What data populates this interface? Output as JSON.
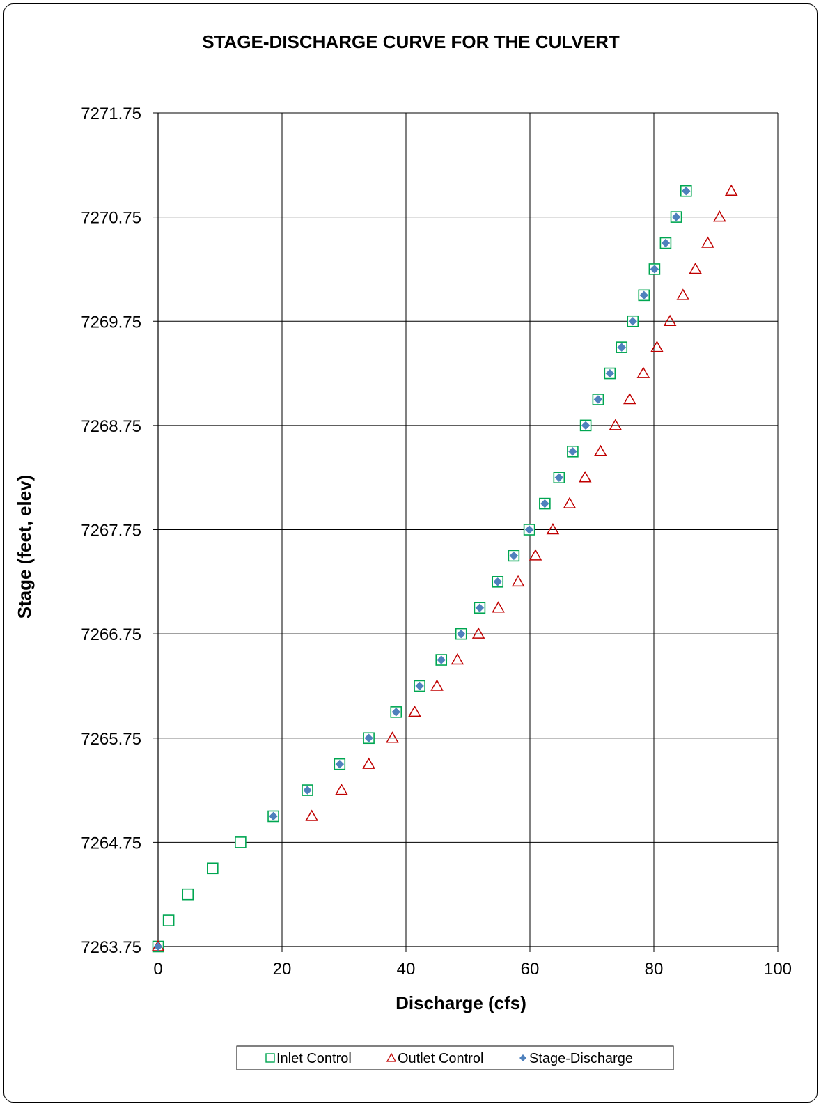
{
  "chart_data": {
    "type": "scatter",
    "title": "STAGE-DISCHARGE CURVE FOR THE CULVERT",
    "xlabel": "Discharge (cfs)",
    "ylabel": "Stage (feet, elev)",
    "xlim": [
      0,
      100
    ],
    "ylim": [
      7263.75,
      7271.75
    ],
    "x_ticks": [
      "0",
      "20",
      "40",
      "60",
      "80",
      "100"
    ],
    "y_ticks": [
      "7263.75",
      "7264.75",
      "7265.75",
      "7266.75",
      "7267.75",
      "7268.75",
      "7269.75",
      "7270.75",
      "7271.75"
    ],
    "grid": true,
    "legend_position": "bottom",
    "series": [
      {
        "name": "Inlet Control",
        "marker": "open-square",
        "color": "#00A651",
        "points": [
          [
            0,
            7263.75
          ],
          [
            1.7,
            7264.0
          ],
          [
            4.8,
            7264.25
          ],
          [
            8.8,
            7264.5
          ],
          [
            13.3,
            7264.75
          ],
          [
            18.6,
            7265.0
          ],
          [
            24.1,
            7265.25
          ],
          [
            29.3,
            7265.5
          ],
          [
            34.0,
            7265.75
          ],
          [
            38.4,
            7266.0
          ],
          [
            42.2,
            7266.25
          ],
          [
            45.7,
            7266.5
          ],
          [
            48.9,
            7266.75
          ],
          [
            51.9,
            7267.0
          ],
          [
            54.8,
            7267.25
          ],
          [
            57.4,
            7267.5
          ],
          [
            59.9,
            7267.75
          ],
          [
            62.4,
            7268.0
          ],
          [
            64.7,
            7268.25
          ],
          [
            66.9,
            7268.5
          ],
          [
            69.0,
            7268.75
          ],
          [
            71.0,
            7269.0
          ],
          [
            72.9,
            7269.25
          ],
          [
            74.8,
            7269.5
          ],
          [
            76.6,
            7269.75
          ],
          [
            78.4,
            7270.0
          ],
          [
            80.1,
            7270.25
          ],
          [
            81.9,
            7270.5
          ],
          [
            83.6,
            7270.75
          ],
          [
            85.2,
            7271.0
          ]
        ]
      },
      {
        "name": "Outlet Control",
        "marker": "open-triangle",
        "color": "#C00000",
        "points": [
          [
            0,
            7263.75
          ],
          [
            24.8,
            7265.0
          ],
          [
            29.6,
            7265.25
          ],
          [
            34.0,
            7265.5
          ],
          [
            37.8,
            7265.75
          ],
          [
            41.4,
            7266.0
          ],
          [
            45.0,
            7266.25
          ],
          [
            48.3,
            7266.5
          ],
          [
            51.7,
            7266.75
          ],
          [
            54.9,
            7267.0
          ],
          [
            58.1,
            7267.25
          ],
          [
            60.9,
            7267.5
          ],
          [
            63.7,
            7267.75
          ],
          [
            66.4,
            7268.0
          ],
          [
            68.9,
            7268.25
          ],
          [
            71.4,
            7268.5
          ],
          [
            73.8,
            7268.75
          ],
          [
            76.1,
            7269.0
          ],
          [
            78.3,
            7269.25
          ],
          [
            80.5,
            7269.5
          ],
          [
            82.6,
            7269.75
          ],
          [
            84.7,
            7270.0
          ],
          [
            86.7,
            7270.25
          ],
          [
            88.7,
            7270.5
          ],
          [
            90.6,
            7270.75
          ],
          [
            92.5,
            7271.0
          ]
        ]
      },
      {
        "name": "Stage-Discharge",
        "marker": "filled-diamond",
        "color": "#4F81BD",
        "points": [
          [
            0,
            7263.75
          ],
          [
            18.6,
            7265.0
          ],
          [
            24.1,
            7265.25
          ],
          [
            29.3,
            7265.5
          ],
          [
            34.0,
            7265.75
          ],
          [
            38.4,
            7266.0
          ],
          [
            42.2,
            7266.25
          ],
          [
            45.7,
            7266.5
          ],
          [
            48.9,
            7266.75
          ],
          [
            51.9,
            7267.0
          ],
          [
            54.8,
            7267.25
          ],
          [
            57.4,
            7267.5
          ],
          [
            59.9,
            7267.75
          ],
          [
            62.4,
            7268.0
          ],
          [
            64.7,
            7268.25
          ],
          [
            66.9,
            7268.5
          ],
          [
            69.0,
            7268.75
          ],
          [
            71.0,
            7269.0
          ],
          [
            72.9,
            7269.25
          ],
          [
            74.8,
            7269.5
          ],
          [
            76.6,
            7269.75
          ],
          [
            78.4,
            7270.0
          ],
          [
            80.1,
            7270.25
          ],
          [
            81.9,
            7270.5
          ],
          [
            83.6,
            7270.75
          ],
          [
            85.2,
            7271.0
          ]
        ]
      }
    ]
  }
}
